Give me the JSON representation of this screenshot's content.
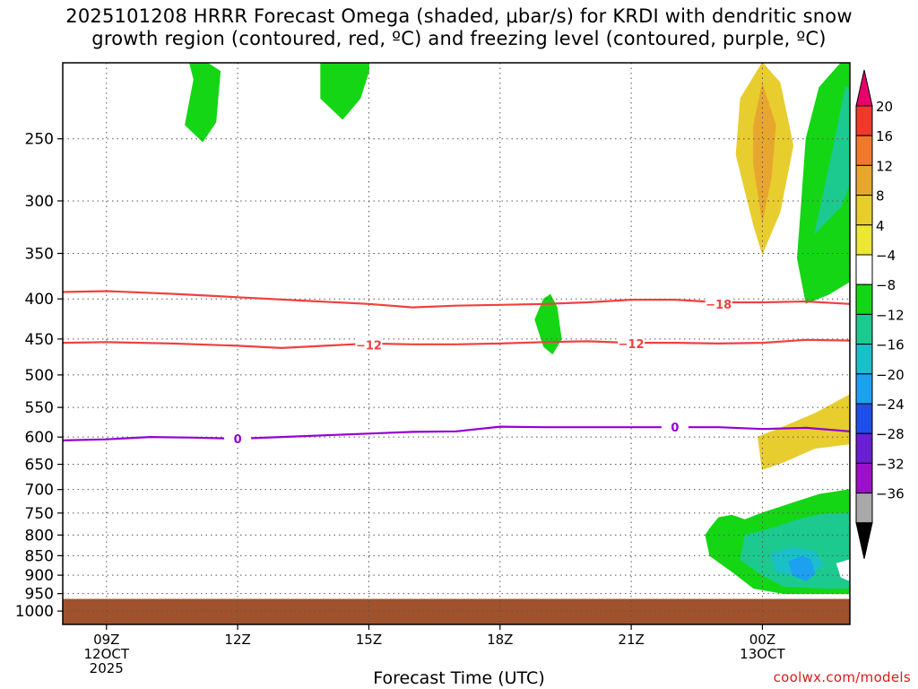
{
  "chart_data": {
    "type": "heatmap",
    "title_lines": [
      "2025101208 HRRR Forecast Omega (shaded, μbar/s) for KRDI with dendritic snow",
      "growth region (contoured, red, ºC) and freezing level (contoured, purple, ºC)"
    ],
    "xlabel": "Forecast Time (UTC)",
    "credit": "coolwx.com/models",
    "x_ticks": [
      {
        "hour": 9,
        "lines": [
          "09Z",
          "12OCT",
          "2025"
        ]
      },
      {
        "hour": 12,
        "lines": [
          "12Z"
        ]
      },
      {
        "hour": 15,
        "lines": [
          "15Z"
        ]
      },
      {
        "hour": 18,
        "lines": [
          "18Z"
        ]
      },
      {
        "hour": 21,
        "lines": [
          "21Z"
        ]
      },
      {
        "hour": 24,
        "lines": [
          "00Z",
          "13OCT"
        ]
      }
    ],
    "x_range_hours": [
      8.0,
      26.0
    ],
    "y_ticks_hpa": [
      250,
      300,
      350,
      400,
      450,
      500,
      550,
      600,
      650,
      700,
      750,
      800,
      850,
      900,
      950,
      1000
    ],
    "y_range_hpa": [
      200,
      1040
    ],
    "y_scale": "log-pressure",
    "grid": "dotted",
    "colorbar": {
      "labels": [
        "20",
        "16",
        "12",
        "8",
        "4",
        "−4",
        "−8",
        "−12",
        "−16",
        "−20",
        "−24",
        "−28",
        "−32",
        "−36"
      ],
      "colors": [
        "#e8006a",
        "#ee3a2a",
        "#f0782a",
        "#e7a72e",
        "#e8cd2e",
        "#ece636",
        "#ffffff",
        "#14d614",
        "#1cc98e",
        "#1bbfc8",
        "#1ea0f0",
        "#1f4fe8",
        "#6a1fd0",
        "#9b10c8",
        "#a8a8a8",
        "#000000"
      ]
    },
    "contours": {
      "dgz_minus18": {
        "label": "−18",
        "color": "#f04040",
        "points": [
          [
            8.0,
            392
          ],
          [
            9.0,
            391
          ],
          [
            10.5,
            394
          ],
          [
            12.0,
            398
          ],
          [
            13.5,
            402
          ],
          [
            15.0,
            406
          ],
          [
            16.0,
            410
          ],
          [
            17.0,
            408
          ],
          [
            18.0,
            407
          ],
          [
            19.0,
            406
          ],
          [
            20.0,
            404
          ],
          [
            21.0,
            401
          ],
          [
            22.0,
            401
          ],
          [
            23.0,
            404
          ],
          [
            24.0,
            404
          ],
          [
            25.0,
            403
          ],
          [
            26.0,
            406
          ]
        ],
        "label_at": [
          [
            23.0,
            406
          ]
        ]
      },
      "dgz_minus12": {
        "label": "−12",
        "color": "#f04040",
        "points": [
          [
            8.0,
            455
          ],
          [
            9.0,
            454
          ],
          [
            10.5,
            456
          ],
          [
            12.0,
            459
          ],
          [
            13.0,
            462
          ],
          [
            14.0,
            459
          ],
          [
            15.0,
            456
          ],
          [
            16.0,
            457
          ],
          [
            17.0,
            457
          ],
          [
            18.0,
            456
          ],
          [
            19.0,
            454
          ],
          [
            20.0,
            453
          ],
          [
            21.0,
            455
          ],
          [
            22.0,
            455
          ],
          [
            23.0,
            456
          ],
          [
            24.0,
            455
          ],
          [
            25.0,
            451
          ],
          [
            26.0,
            452
          ]
        ],
        "label_at": [
          [
            15.0,
            458
          ],
          [
            21.0,
            456
          ]
        ]
      },
      "freezing_0": {
        "label": "0",
        "color": "#9400d3",
        "points": [
          [
            8.0,
            606
          ],
          [
            9.0,
            604
          ],
          [
            10.0,
            600
          ],
          [
            11.0,
            601
          ],
          [
            12.0,
            603
          ],
          [
            13.0,
            600
          ],
          [
            14.0,
            597
          ],
          [
            15.0,
            594
          ],
          [
            16.0,
            591
          ],
          [
            17.0,
            590
          ],
          [
            18.0,
            582
          ],
          [
            19.0,
            583
          ],
          [
            20.0,
            583
          ],
          [
            21.0,
            583
          ],
          [
            22.0,
            583
          ],
          [
            23.0,
            583
          ],
          [
            24.0,
            586
          ],
          [
            25.0,
            584
          ],
          [
            26.0,
            590
          ]
        ],
        "label_at": [
          [
            12.0,
            603
          ],
          [
            22.0,
            583
          ]
        ]
      }
    },
    "filled_regions": [
      {
        "value": -6,
        "color": "#14d614",
        "points": [
          [
            11.0,
            210
          ],
          [
            10.8,
            240
          ],
          [
            11.2,
            252
          ],
          [
            11.5,
            238
          ],
          [
            11.6,
            205
          ],
          [
            11.3,
            195
          ],
          [
            10.9,
            195
          ]
        ]
      },
      {
        "value": -6,
        "color": "#14d614",
        "points": [
          [
            13.9,
            205
          ],
          [
            13.9,
            222
          ],
          [
            14.4,
            236
          ],
          [
            14.8,
            222
          ],
          [
            15.0,
            205
          ],
          [
            15.0,
            195
          ],
          [
            13.9,
            195
          ]
        ]
      },
      {
        "value": -6,
        "color": "#14d614",
        "points": [
          [
            19.0,
            400
          ],
          [
            18.8,
            425
          ],
          [
            19.0,
            460
          ],
          [
            19.2,
            470
          ],
          [
            19.4,
            450
          ],
          [
            19.3,
            410
          ],
          [
            19.15,
            395
          ]
        ]
      },
      {
        "value": 6,
        "color": "#e8cd2e",
        "points": [
          [
            23.5,
            222
          ],
          [
            23.4,
            262
          ],
          [
            23.8,
            322
          ],
          [
            24.0,
            350
          ],
          [
            24.4,
            310
          ],
          [
            24.7,
            255
          ],
          [
            24.4,
            212
          ],
          [
            24.0,
            196
          ]
        ]
      },
      {
        "value": 10,
        "color": "#e7a72e",
        "points": [
          [
            23.8,
            240
          ],
          [
            23.8,
            270
          ],
          [
            24.0,
            318
          ],
          [
            24.2,
            280
          ],
          [
            24.3,
            240
          ],
          [
            24.0,
            213
          ]
        ]
      },
      {
        "value": -6,
        "color": "#14d614",
        "points": [
          [
            25.8,
            195
          ],
          [
            25.3,
            215
          ],
          [
            25.0,
            250
          ],
          [
            24.9,
            300
          ],
          [
            24.8,
            355
          ],
          [
            25.0,
            405
          ],
          [
            25.5,
            395
          ],
          [
            26.0,
            380
          ],
          [
            26.0,
            195
          ]
        ]
      },
      {
        "value": -10,
        "color": "#1cc98e",
        "points": [
          [
            25.9,
            215
          ],
          [
            25.6,
            260
          ],
          [
            25.2,
            330
          ],
          [
            25.8,
            305
          ],
          [
            26.0,
            285
          ],
          [
            26.0,
            215
          ]
        ]
      },
      {
        "value": 6,
        "color": "#e8cd2e",
        "points": [
          [
            26.0,
            530
          ],
          [
            25.2,
            560
          ],
          [
            24.4,
            585
          ],
          [
            23.9,
            600
          ],
          [
            24.0,
            660
          ],
          [
            24.5,
            645
          ],
          [
            25.2,
            620
          ],
          [
            26.0,
            612
          ]
        ]
      },
      {
        "value": -6,
        "color": "#14d614",
        "points": [
          [
            22.8,
            785
          ],
          [
            22.7,
            800
          ],
          [
            22.8,
            850
          ],
          [
            23.3,
            890
          ],
          [
            23.8,
            935
          ],
          [
            24.5,
            950
          ],
          [
            26.0,
            950
          ],
          [
            26.0,
            700
          ],
          [
            25.3,
            710
          ],
          [
            24.7,
            728
          ],
          [
            24.0,
            750
          ],
          [
            23.6,
            765
          ],
          [
            23.3,
            755
          ],
          [
            23.0,
            760
          ]
        ]
      },
      {
        "value": -10,
        "color": "#1cc98e",
        "points": [
          [
            23.6,
            800
          ],
          [
            23.5,
            860
          ],
          [
            24.0,
            900
          ],
          [
            24.5,
            930
          ],
          [
            25.5,
            935
          ],
          [
            26.0,
            935
          ],
          [
            26.0,
            750
          ],
          [
            25.4,
            752
          ],
          [
            24.8,
            765
          ],
          [
            24.2,
            785
          ]
        ]
      },
      {
        "value": -14,
        "color": "#1bbfc8",
        "points": [
          [
            24.2,
            845
          ],
          [
            24.3,
            890
          ],
          [
            24.9,
            905
          ],
          [
            25.4,
            875
          ],
          [
            25.2,
            840
          ],
          [
            24.7,
            830
          ]
        ]
      },
      {
        "value": -18,
        "color": "#1ea0f0",
        "points": [
          [
            24.6,
            865
          ],
          [
            24.7,
            900
          ],
          [
            25.0,
            915
          ],
          [
            25.2,
            895
          ],
          [
            25.1,
            860
          ],
          [
            24.9,
            852
          ]
        ]
      },
      {
        "value": 0,
        "color": "#ffffff",
        "points": [
          [
            26.0,
            860
          ],
          [
            25.7,
            870
          ],
          [
            25.8,
            905
          ],
          [
            26.0,
            915
          ]
        ]
      }
    ],
    "terrain": {
      "color": "#a0522d",
      "surface_pressure_hpa": 965
    }
  }
}
